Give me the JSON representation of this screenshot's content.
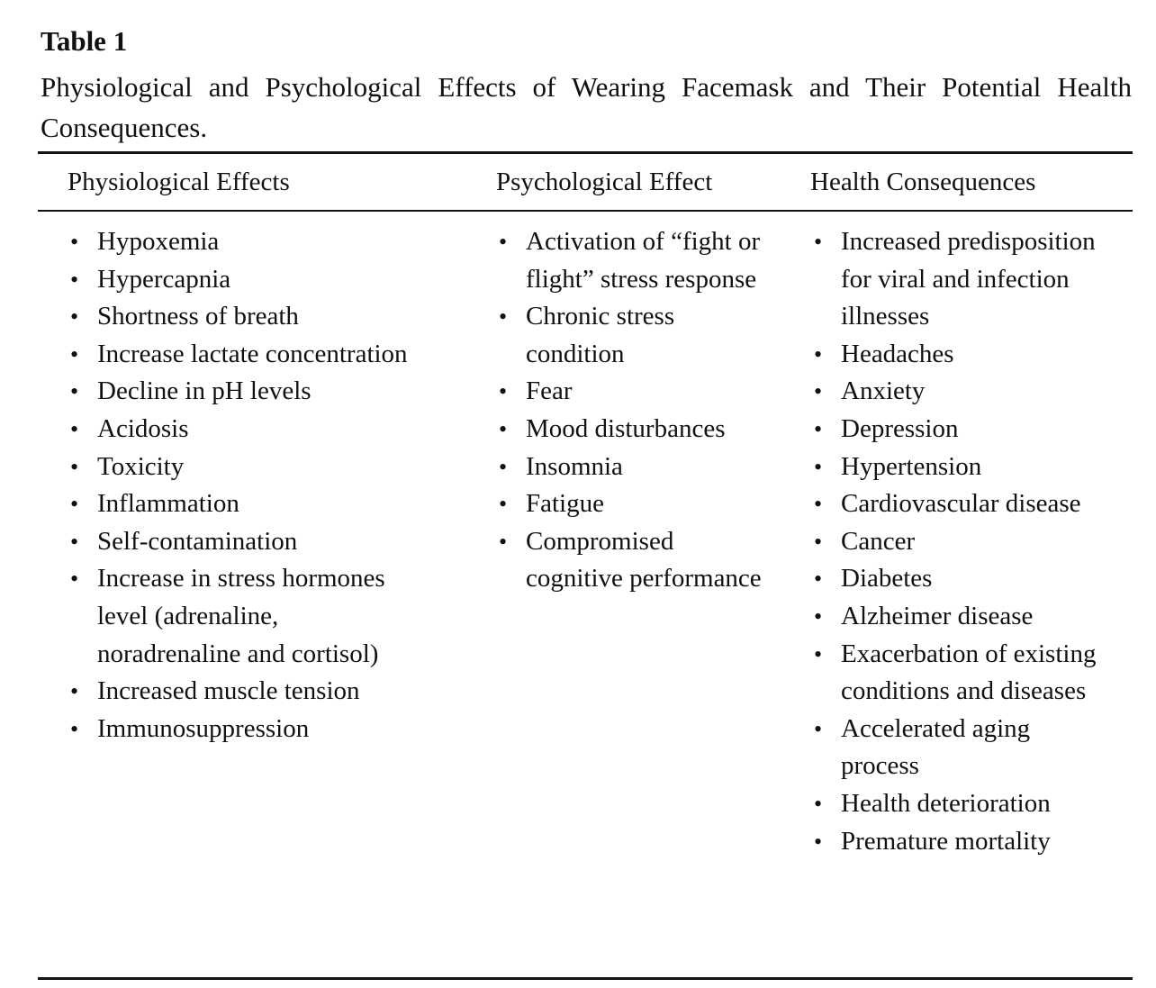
{
  "table": {
    "label": "Table 1",
    "caption": "Physiological and Psychological Effects of Wearing Facemask and Their Potential Health Consequences.",
    "headers": [
      "Physiological Effects",
      "Psychological Effect",
      "Health Consequences"
    ],
    "columns": [
      [
        "Hypoxemia",
        "Hypercapnia",
        "Shortness of breath",
        "Increase lactate concentration",
        "Decline in pH levels",
        "Acidosis",
        "Toxicity",
        "Inflammation",
        "Self-contamination",
        "Increase in stress hormones level (adrenaline, noradrenaline and cortisol)",
        "Increased muscle tension",
        "Immunosuppression"
      ],
      [
        "Activation of “fight or flight” stress response",
        "Chronic stress condition",
        "Fear",
        "Mood disturbances",
        "Insomnia",
        "Fatigue",
        "Compromised cognitive performance"
      ],
      [
        "Increased predisposition for viral and infection illnesses",
        "Headaches",
        "Anxiety",
        "Depression",
        "Hypertension",
        "Cardiovascular disease",
        "Cancer",
        "Diabetes",
        "Alzheimer disease",
        "Exacerbation of existing conditions and diseases",
        "Accelerated aging process",
        "Health deterioration",
        "Premature mortality"
      ]
    ]
  }
}
